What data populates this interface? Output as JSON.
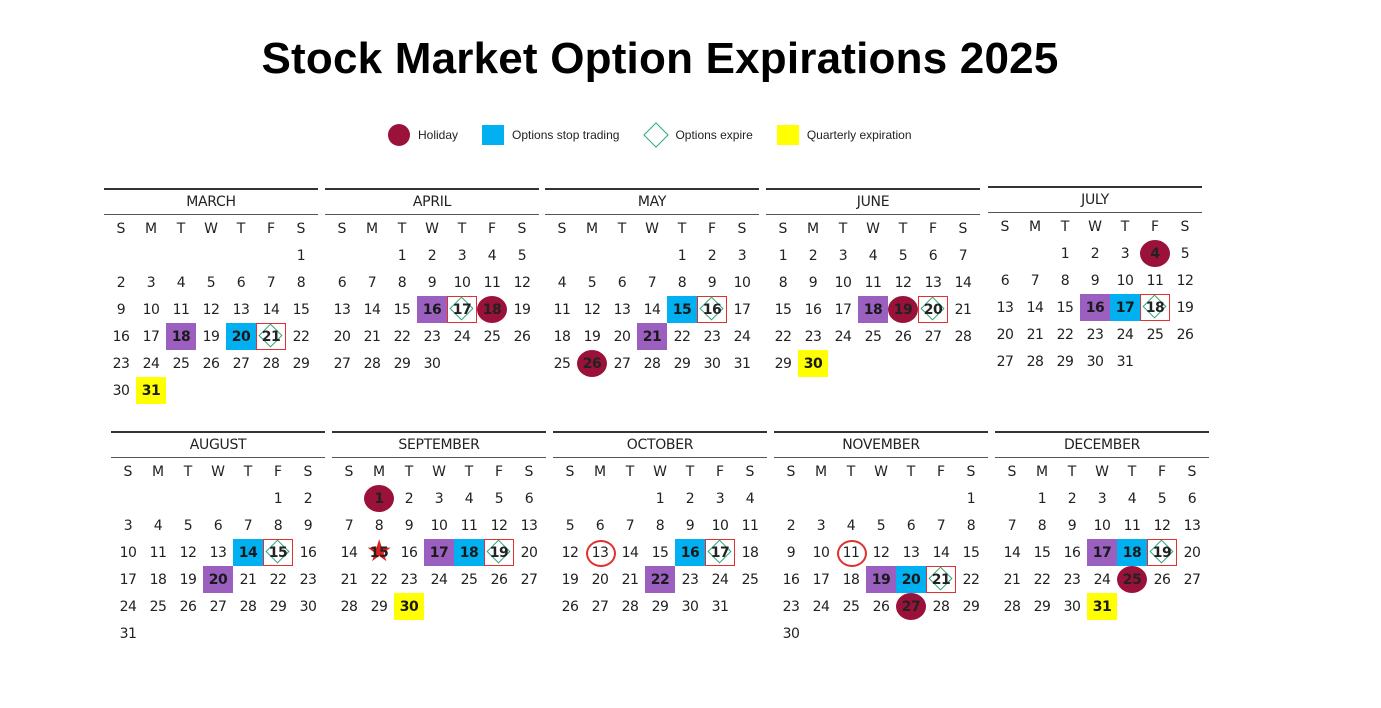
{
  "title": "Stock Market Option Expirations 2025",
  "colors": {
    "holiday": "#9a1139",
    "stop_trading": "#00b0f0",
    "purple_marker": "#9b5fc0",
    "expire_diamond": "#2aa57a",
    "expire_box": "#e03030",
    "quarterly": "#ffff00"
  },
  "legend": [
    {
      "label": "Holiday",
      "type": "holiday",
      "icon": "holiday-circle-icon"
    },
    {
      "label": "Options stop trading",
      "type": "stop",
      "icon": "stop-trading-square-icon"
    },
    {
      "label": "Options expire",
      "type": "expire",
      "icon": "expire-diamond-icon"
    },
    {
      "label": "Quarterly expiration",
      "type": "quarter",
      "icon": "quarterly-square-icon"
    }
  ],
  "weekdays": [
    "S",
    "M",
    "T",
    "W",
    "T",
    "F",
    "S"
  ],
  "months": [
    {
      "name": "MARCH",
      "offset": 6,
      "days": 31,
      "marks": {
        "18": "purple",
        "20": "stop",
        "21": "expire",
        "31": "quarter"
      }
    },
    {
      "name": "APRIL",
      "offset": 2,
      "days": 30,
      "marks": {
        "16": "purple",
        "17": "expire",
        "18": "holiday"
      }
    },
    {
      "name": "MAY",
      "offset": 4,
      "days": 31,
      "marks": {
        "15": "stop",
        "16": "expire",
        "21": "purple",
        "26": "holiday"
      }
    },
    {
      "name": "JUNE",
      "offset": 0,
      "days": 30,
      "marks": {
        "18": "purple",
        "19": "holiday",
        "20": "expire",
        "30": "quarter"
      }
    },
    {
      "name": "JULY",
      "offset": 2,
      "days": 31,
      "marks": {
        "4": "holiday",
        "16": "purple",
        "17": "stop",
        "18": "expire"
      }
    },
    {
      "name": "AUGUST",
      "offset": 5,
      "days": 31,
      "marks": {
        "14": "stop",
        "15": "expire",
        "20": "purple"
      }
    },
    {
      "name": "SEPTEMBER",
      "offset": 1,
      "days": 30,
      "marks": {
        "1": "holiday",
        "15": "star",
        "17": "purple",
        "18": "stop",
        "19": "expire",
        "30": "quarter"
      }
    },
    {
      "name": "OCTOBER",
      "offset": 3,
      "days": 31,
      "marks": {
        "13": "ring",
        "16": "stop",
        "17": "expire",
        "22": "purple"
      }
    },
    {
      "name": "NOVEMBER",
      "offset": 6,
      "days": 30,
      "marks": {
        "11": "ring",
        "19": "purple",
        "20": "stop",
        "21": "expire",
        "27": "holiday"
      }
    },
    {
      "name": "DECEMBER",
      "offset": 1,
      "days": 31,
      "marks": {
        "17": "purple",
        "18": "stop",
        "19": "expire",
        "25": "holiday",
        "31": "quarter"
      }
    }
  ]
}
